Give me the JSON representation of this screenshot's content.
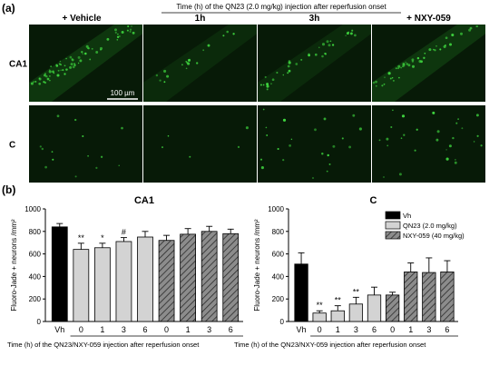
{
  "panel_a": {
    "label": "(a)",
    "caption": "Time (h) of the QN23 (2.0 mg/kg) injection after reperfusion onset",
    "columns": [
      "+ Vehicle",
      "1h",
      "3h",
      "+ NXY-059"
    ],
    "rows": [
      "CA1",
      "C"
    ],
    "scale_bar": "100 µm",
    "colors": {
      "background": "#071a07",
      "signal": "#3fd63f"
    }
  },
  "panel_b": {
    "label": "(b)",
    "caption": "Time (h) of the QN23/NXY-059 injection after reperfusion onset",
    "legend": [
      "Vh",
      "QN23 (2.0 mg/kg)",
      "NXY-059 (40 mg/kg)"
    ]
  },
  "chart_data": [
    {
      "type": "bar",
      "title": "CA1",
      "ylabel": "Fluoro-Jade + neurons /mm²",
      "ylim": [
        0,
        1000
      ],
      "yticks": [
        0,
        200,
        400,
        600,
        800,
        1000
      ],
      "categories": [
        "Vh",
        "0",
        "1",
        "3",
        "6",
        "0",
        "1",
        "3",
        "6"
      ],
      "groups": [
        "vh",
        "qn23",
        "qn23",
        "qn23",
        "qn23",
        "nxy",
        "nxy",
        "nxy",
        "nxy"
      ],
      "values": [
        840,
        640,
        655,
        710,
        750,
        720,
        775,
        800,
        780
      ],
      "errors": [
        30,
        55,
        40,
        35,
        50,
        45,
        50,
        45,
        40
      ],
      "annotations": [
        "",
        "**",
        "*",
        "#",
        "",
        "",
        "",
        "",
        ""
      ],
      "colors": {
        "vh": "#000000",
        "qn23": "#d3d3d3",
        "nxy": "#8c8c8c"
      }
    },
    {
      "type": "bar",
      "title": "C",
      "ylabel": "Fluoro-Jade + neurons /mm²",
      "ylim": [
        0,
        1000
      ],
      "yticks": [
        0,
        200,
        400,
        600,
        800,
        1000
      ],
      "categories": [
        "Vh",
        "0",
        "1",
        "3",
        "6",
        "0",
        "1",
        "3",
        "6"
      ],
      "groups": [
        "vh",
        "qn23",
        "qn23",
        "qn23",
        "qn23",
        "nxy",
        "nxy",
        "nxy",
        "nxy"
      ],
      "values": [
        510,
        75,
        95,
        155,
        235,
        235,
        440,
        435,
        440
      ],
      "errors": [
        100,
        20,
        45,
        60,
        70,
        25,
        80,
        130,
        100
      ],
      "annotations": [
        "",
        "**",
        "**",
        "**",
        "",
        "",
        "",
        "",
        ""
      ],
      "colors": {
        "vh": "#000000",
        "qn23": "#d3d3d3",
        "nxy": "#8c8c8c"
      }
    }
  ]
}
